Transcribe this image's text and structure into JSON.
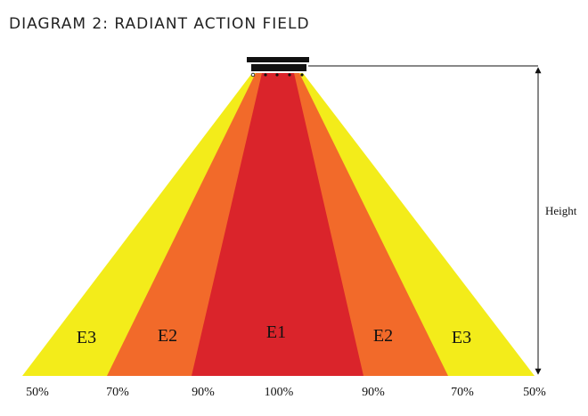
{
  "header": {
    "title": "DIAGRAM 2: RADIANT ACTION FIELD"
  },
  "zones": [
    {
      "label": "E3"
    },
    {
      "label": "E2"
    },
    {
      "label": "E1"
    },
    {
      "label": "E2"
    },
    {
      "label": "E3"
    }
  ],
  "base_labels": [
    "50%",
    "70%",
    "90%",
    "100%",
    "90%",
    "70%",
    "50%"
  ],
  "dimension": {
    "label": "Height"
  }
}
